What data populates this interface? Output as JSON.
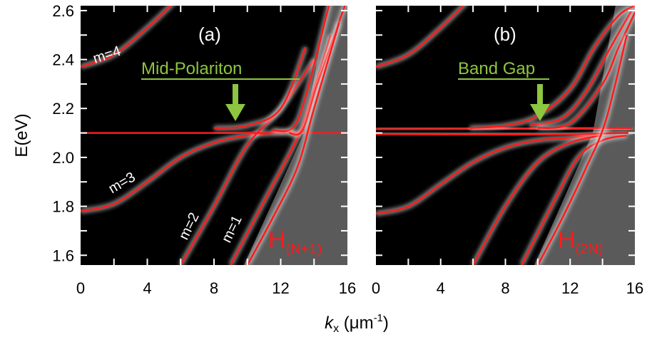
{
  "chart_data": [
    {
      "type": "line",
      "panel_label": "(a)",
      "xlabel": "k_x (μm⁻¹)",
      "ylabel": "E(eV)",
      "xlim": [
        0,
        16
      ],
      "ylim": [
        1.56,
        2.62
      ],
      "x_ticks": [
        "0",
        "4",
        "8",
        "12",
        "16"
      ],
      "y_ticks": [
        "1.6",
        "1.8",
        "2.0",
        "2.2",
        "2.4",
        "2.6"
      ],
      "exciton_energy": 2.1,
      "series": [
        {
          "name": "m=4",
          "x": [
            0,
            2,
            4,
            6
          ],
          "y": [
            2.37,
            2.42,
            2.53,
            2.66
          ]
        },
        {
          "name": "m=3",
          "x": [
            0,
            2,
            4,
            6,
            8,
            10,
            12,
            13
          ],
          "y": [
            1.78,
            1.81,
            1.9,
            2.0,
            2.06,
            2.09,
            2.1,
            2.1
          ]
        },
        {
          "name": "m=2",
          "x": [
            6,
            8,
            10,
            12,
            14
          ],
          "y": [
            1.56,
            1.8,
            2.05,
            2.2,
            2.4
          ]
        },
        {
          "name": "m=1",
          "x": [
            9,
            11,
            13,
            14,
            15
          ],
          "y": [
            1.56,
            1.82,
            2.08,
            2.28,
            2.5
          ]
        }
      ],
      "annotations": {
        "mode_labels": [
          "m=4",
          "m=3",
          "m=2",
          "m=1"
        ],
        "arrow_text": "Mid-Polariton",
        "hamiltonian_main": "H",
        "hamiltonian_sub": "(N+1)"
      }
    },
    {
      "type": "line",
      "panel_label": "(b)",
      "xlim": [
        0,
        16
      ],
      "ylim": [
        1.56,
        2.62
      ],
      "x_ticks": [
        "0",
        "4",
        "8",
        "12",
        "16"
      ],
      "exciton_energy": 2.1,
      "annotations": {
        "arrow_text": "Band Gap",
        "hamiltonian_main": "H",
        "hamiltonian_sub": "(2N)"
      }
    }
  ],
  "colors": {
    "background": "#000000",
    "curve": "#ff1a1a",
    "glow": "#ffffff",
    "annotation": "#8dc63f",
    "shade": "#5a5a5a"
  }
}
